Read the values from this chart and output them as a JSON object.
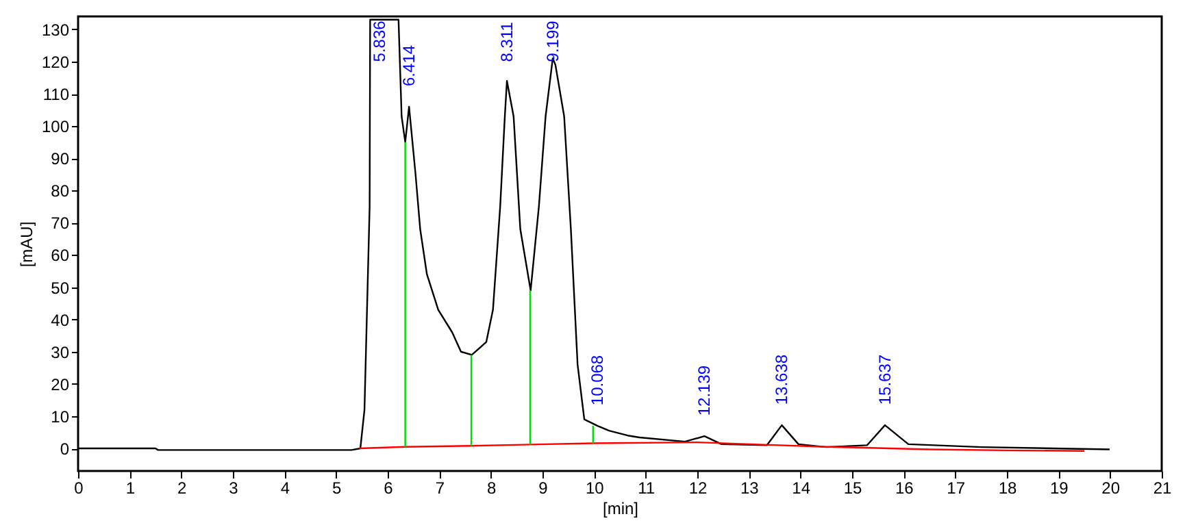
{
  "chart_data": {
    "type": "line",
    "xlabel": "[min]",
    "ylabel": "[mAU]",
    "xlim": [
      0,
      21
    ],
    "ylim": [
      -7,
      134
    ],
    "xticks": [
      0,
      1,
      2,
      3,
      4,
      5,
      6,
      7,
      8,
      9,
      10,
      11,
      12,
      13,
      14,
      15,
      16,
      17,
      18,
      19,
      20,
      21
    ],
    "yticks": [
      0,
      10,
      20,
      30,
      40,
      50,
      60,
      70,
      80,
      90,
      100,
      110,
      120,
      130
    ],
    "grid": false,
    "marker": "none",
    "line_style": "solid",
    "series": [
      {
        "color": "#000000",
        "x": [
          0,
          1.5,
          1.55,
          5.3,
          5.47,
          5.55,
          5.65,
          5.66,
          5.836,
          6.21,
          6.27,
          6.34,
          6.414,
          6.54,
          6.63,
          6.76,
          6.98,
          7.25,
          7.42,
          7.63,
          7.91,
          8.04,
          8.18,
          8.27,
          8.311,
          8.44,
          8.57,
          8.77,
          8.93,
          9.06,
          9.199,
          9.25,
          9.42,
          9.55,
          9.68,
          9.81,
          10.068,
          10.29,
          10.65,
          10.88,
          11.76,
          12.139,
          12.47,
          13.35,
          13.638,
          13.96,
          14.5,
          15.29,
          15.637,
          16.09,
          17.51,
          19.99
        ],
        "values": [
          0,
          0,
          -0.5,
          -0.5,
          0,
          12,
          75,
          133,
          133,
          133,
          103,
          95,
          106,
          85,
          68,
          54,
          43,
          36,
          30,
          29,
          33,
          43,
          75,
          103,
          114,
          103,
          68,
          49,
          75,
          103,
          121,
          119,
          103,
          68,
          26,
          9,
          7,
          5.5,
          4,
          3.4,
          2.1,
          3.8,
          1.3,
          1,
          7.2,
          1.3,
          0.4,
          1,
          7.2,
          1.3,
          0.4,
          -0.3
        ]
      },
      {
        "color": "#ff0000",
        "x": [
          5.45,
          6.34,
          7.62,
          8.76,
          9.98,
          12.0,
          13.2,
          14.5,
          16.5,
          18.0,
          19.5
        ],
        "values": [
          0,
          0.5,
          0.8,
          1.2,
          1.6,
          1.9,
          1.2,
          0.5,
          -0.3,
          -0.6,
          -0.8
        ]
      },
      {
        "color": "#00dd00",
        "x": [
          6.34,
          6.34
        ],
        "values": [
          0.5,
          95
        ]
      },
      {
        "color": "#00dd00",
        "x": [
          7.62,
          7.62
        ],
        "values": [
          0.8,
          29
        ]
      },
      {
        "color": "#00dd00",
        "x": [
          8.76,
          8.76
        ],
        "values": [
          1.2,
          49
        ]
      },
      {
        "color": "#00dd00",
        "x": [
          9.98,
          9.98
        ],
        "values": [
          1.6,
          7
        ]
      }
    ],
    "annotations": [
      {
        "text": "5.836",
        "x": 5.836,
        "y": 133
      },
      {
        "text": "6.414",
        "x": 6.414,
        "y": 106
      },
      {
        "text": "8.311",
        "x": 8.311,
        "y": 114
      },
      {
        "text": "9.199",
        "x": 9.199,
        "y": 121
      },
      {
        "text": "10.068",
        "x": 10.068,
        "y": 7
      },
      {
        "text": "12.139",
        "x": 12.139,
        "y": 3.8
      },
      {
        "text": "13.638",
        "x": 13.638,
        "y": 7.2
      },
      {
        "text": "15.637",
        "x": 15.637,
        "y": 7.2
      }
    ]
  }
}
